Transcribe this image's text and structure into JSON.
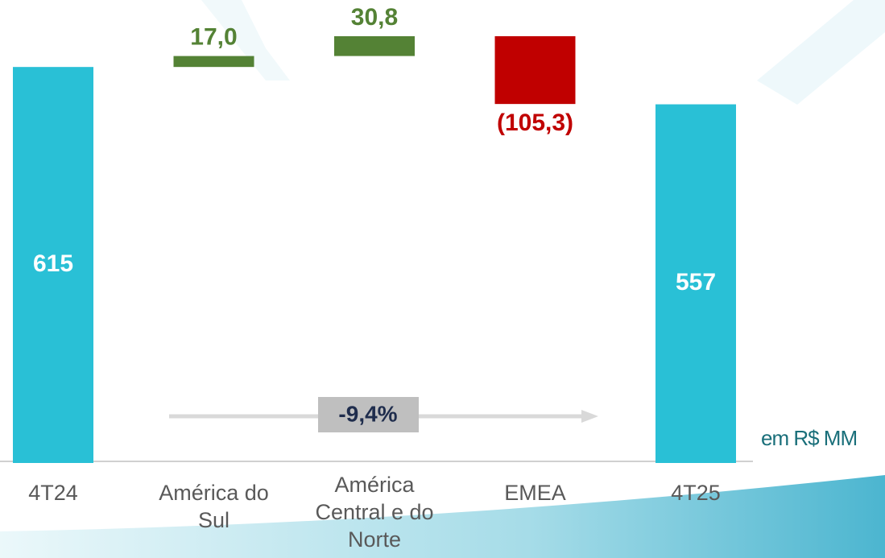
{
  "chart_data": {
    "type": "waterfall",
    "categories": [
      "4T24",
      "América do Sul",
      "América Central e do Norte",
      "EMEA",
      "4T25"
    ],
    "values": [
      615,
      17.0,
      30.8,
      -105.3,
      557
    ],
    "value_labels": [
      "615",
      "17,0",
      "30,8",
      "(105,3)",
      "557"
    ],
    "measures": [
      "total",
      "relative",
      "relative",
      "relative",
      "total"
    ],
    "colors": {
      "total": "#29c0d6",
      "increase": "#548235",
      "decrease": "#c00000"
    },
    "ylim": [
      0,
      719
    ],
    "annotation": "-9,4%",
    "unit_note": "em R$ MM"
  }
}
